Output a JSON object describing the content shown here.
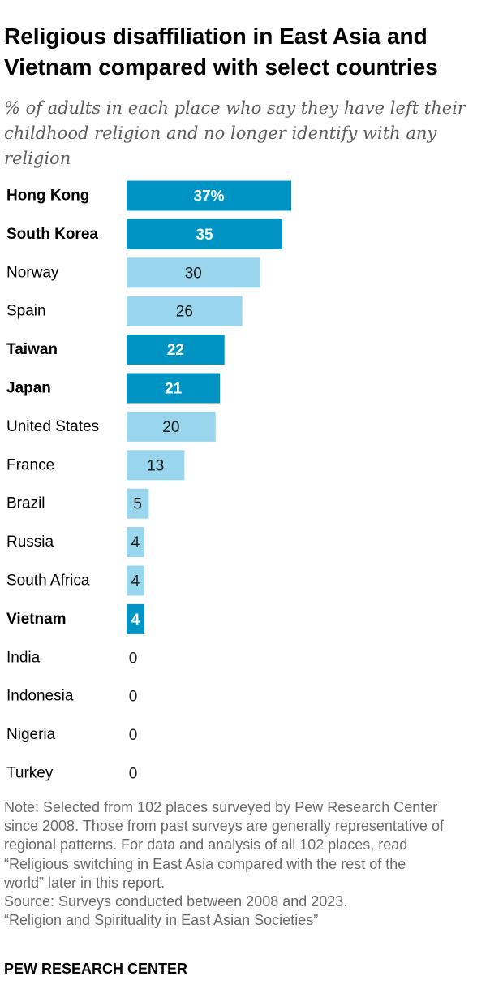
{
  "chart_data": {
    "type": "bar",
    "orientation": "horizontal",
    "title": "Religious disaffiliation in East Asia and Vietnam compared with select countries",
    "subtitle": "% of adults in each place who say they have left their childhood religion and no longer identify with any religion",
    "categories": [
      "Hong Kong",
      "South Korea",
      "Norway",
      "Spain",
      "Taiwan",
      "Japan",
      "United States",
      "France",
      "Brazil",
      "Russia",
      "South Africa",
      "Vietnam",
      "India",
      "Indonesia",
      "Nigeria",
      "Turkey"
    ],
    "values": [
      37,
      35,
      30,
      26,
      22,
      21,
      20,
      13,
      5,
      4,
      4,
      4,
      0,
      0,
      0,
      0
    ],
    "value_labels": [
      "37%",
      "35",
      "30",
      "26",
      "22",
      "21",
      "20",
      "13",
      "5",
      "4",
      "4",
      "4",
      "0",
      "0",
      "0",
      "0"
    ],
    "highlighted": [
      true,
      true,
      false,
      false,
      true,
      true,
      false,
      false,
      false,
      false,
      false,
      true,
      false,
      false,
      false,
      false
    ],
    "xlim": [
      0,
      37
    ],
    "xlabel": "",
    "ylabel": "",
    "grid": false,
    "legend": "none",
    "colors": {
      "highlight": "#0094c4",
      "normal": "#99d5ec",
      "highlight_label": "#ffffff",
      "normal_label": "#1a1a1a"
    }
  },
  "note": {
    "lines": [
      "Note: Selected from 102 places surveyed by Pew Research Center",
      "since 2008. Those from past surveys are generally representative of",
      "regional patterns. For data and analysis of all 102 places, read",
      "“Religious switching in East Asia compared with the rest of the",
      "world” later in this report.",
      "Source: Surveys conducted between 2008 and 2023.",
      "“Religion and Spirituality in East Asian Societies”"
    ]
  },
  "brand": "PEW RESEARCH CENTER"
}
